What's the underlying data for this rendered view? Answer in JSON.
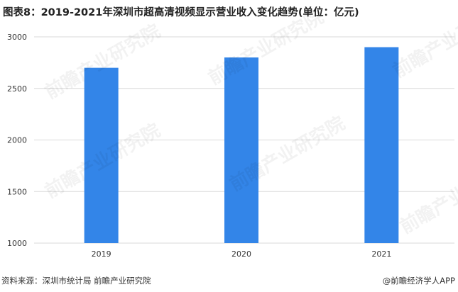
{
  "title": "图表8：2019-2021年深圳市超高清视频显示营业收入变化趋势(单位：亿元)",
  "source": "资料来源：深圳市统计局 前瞻产业研究院",
  "brand": "@前瞻经济学人APP",
  "watermark": "前瞻产业研究院",
  "chart_data": {
    "type": "bar",
    "title": "图表8：2019-2021年深圳市超高清视频显示营业收入变化趋势(单位：亿元)",
    "categories": [
      "2019",
      "2020",
      "2021"
    ],
    "values": [
      2700,
      2800,
      2900
    ],
    "ylim": [
      1000,
      3000
    ],
    "yticks": [
      1000,
      1500,
      2000,
      2500,
      3000
    ],
    "grid": true,
    "bar_color": "#3385e8"
  }
}
